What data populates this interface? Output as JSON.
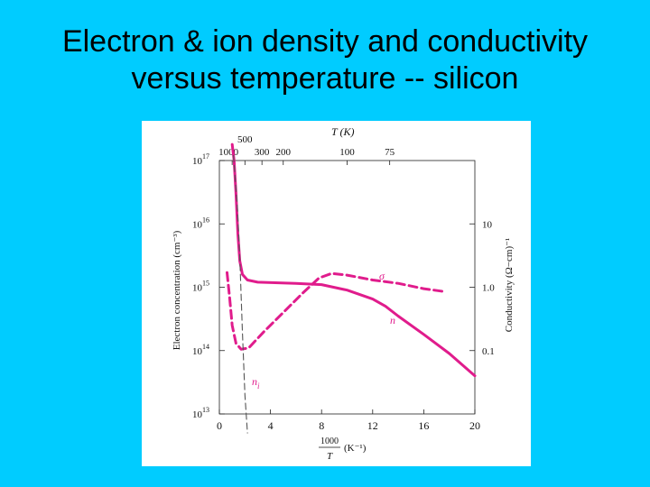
{
  "slide": {
    "title_line1": "Electron & ion density and conductivity",
    "title_line2": "versus temperature -- silicon",
    "background_color": "#00ccff"
  },
  "chart_data": {
    "type": "line",
    "x_axis": {
      "label_numerator": "1000",
      "label_denominator": "T",
      "label_unit": "(K⁻¹)",
      "range": [
        0,
        20
      ],
      "ticks": [
        0,
        4,
        8,
        12,
        16,
        20
      ]
    },
    "top_axis": {
      "label": "T (K)",
      "ticks": [
        {
          "label": "1000",
          "temperature": 1000
        },
        {
          "label": "500",
          "temperature": 500
        },
        {
          "label": "300",
          "temperature": 300
        },
        {
          "label": "200",
          "temperature": 200
        },
        {
          "label": "100",
          "temperature": 100
        },
        {
          "label": "75",
          "temperature": 75
        }
      ]
    },
    "left_axis": {
      "label": "Electron concentration (cm⁻³)",
      "scale": "log",
      "range": [
        10000000000000.0,
        1e+17
      ],
      "ticks": [
        {
          "value": 10000000000000.0,
          "base": "10",
          "exp": "13"
        },
        {
          "value": 100000000000000.0,
          "base": "10",
          "exp": "14"
        },
        {
          "value": 1000000000000000.0,
          "base": "10",
          "exp": "15"
        },
        {
          "value": 1e+16,
          "base": "10",
          "exp": "16"
        },
        {
          "value": 1e+17,
          "base": "10",
          "exp": "17"
        }
      ]
    },
    "right_axis": {
      "label": "Conductivity (Ω−cm)⁻¹",
      "scale": "log",
      "ticks": [
        {
          "value": 0.1,
          "label": "0.1"
        },
        {
          "value": 1.0,
          "label": "1.0"
        },
        {
          "value": 10,
          "label": "10"
        }
      ]
    },
    "series": [
      {
        "name": "n",
        "style": "solid",
        "color": "#e01c8c",
        "points": [
          [
            1.0,
            1.8e+17
          ],
          [
            1.15,
            1e+17
          ],
          [
            1.3,
            3e+16
          ],
          [
            1.45,
            7000000000000000.0
          ],
          [
            1.6,
            2600000000000000.0
          ],
          [
            1.8,
            1600000000000000.0
          ],
          [
            2.2,
            1300000000000000.0
          ],
          [
            3,
            1200000000000000.0
          ],
          [
            6,
            1150000000000000.0
          ],
          [
            8,
            1100000000000000.0
          ],
          [
            10,
            900000000000000.0
          ],
          [
            12,
            650000000000000.0
          ],
          [
            13,
            500000000000000.0
          ],
          [
            14,
            350000000000000.0
          ],
          [
            16,
            180000000000000.0
          ],
          [
            18,
            90000000000000.0
          ],
          [
            20,
            40000000000000.0
          ]
        ]
      },
      {
        "name": "σ",
        "style": "dashed",
        "color": "#e01c8c",
        "points": [
          [
            0.6,
            1700000000000000.0
          ],
          [
            0.8,
            700000000000000.0
          ],
          [
            1.0,
            250000000000000.0
          ],
          [
            1.3,
            130000000000000.0
          ],
          [
            1.7,
            105000000000000.0
          ],
          [
            2.3,
            110000000000000.0
          ],
          [
            3.5,
            200000000000000.0
          ],
          [
            5,
            400000000000000.0
          ],
          [
            6.5,
            800000000000000.0
          ],
          [
            7.8,
            1400000000000000.0
          ],
          [
            8.8,
            1650000000000000.0
          ],
          [
            10,
            1550000000000000.0
          ],
          [
            12,
            1300000000000000.0
          ],
          [
            14,
            1150000000000000.0
          ],
          [
            16,
            950000000000000.0
          ],
          [
            17.7,
            850000000000000.0
          ]
        ]
      },
      {
        "name": "n",
        "subscript": "i",
        "style": "dashed",
        "color": "#555555",
        "points": [
          [
            1.1,
            1.2e+17
          ],
          [
            1.4,
            2e+16
          ],
          [
            1.6,
            3000000000000000.0
          ],
          [
            1.8,
            200000000000000.0
          ],
          [
            2.0,
            20000000000000.0
          ],
          [
            2.2,
            5000000000000.0
          ]
        ]
      }
    ]
  }
}
